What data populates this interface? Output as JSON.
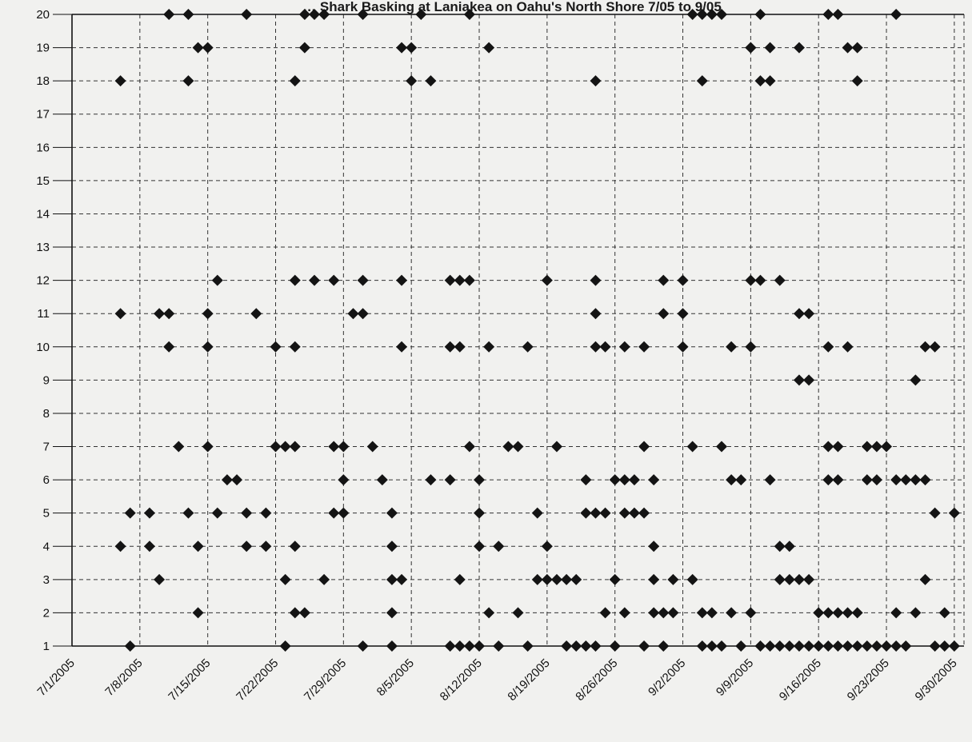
{
  "chart_data": {
    "type": "scatter",
    "title": "… Shark Basking at Laniakea on Oahu's North Shore 7/05 to 9/05",
    "xlabel": "",
    "ylabel": "",
    "x_ticks": [
      "7/1/2005",
      "7/8/2005",
      "7/15/2005",
      "7/22/2005",
      "7/29/2005",
      "8/5/2005",
      "8/12/2005",
      "8/19/2005",
      "8/26/2005",
      "9/2/2005",
      "9/9/2005",
      "9/16/2005",
      "9/23/2005",
      "9/30/2005"
    ],
    "xlim": [
      "2005-07-01",
      "2005-10-01"
    ],
    "ylim": [
      1,
      20
    ],
    "y_ticks": [
      1,
      2,
      3,
      4,
      5,
      6,
      7,
      8,
      9,
      10,
      11,
      12,
      13,
      14,
      15,
      16,
      17,
      18,
      19,
      20
    ],
    "grid": true,
    "marker": "diamond",
    "marker_color": "#141414",
    "points": [
      {
        "x": "2005-07-06",
        "y": 4
      },
      {
        "x": "2005-07-06",
        "y": 11
      },
      {
        "x": "2005-07-06",
        "y": 18
      },
      {
        "x": "2005-07-07",
        "y": 1
      },
      {
        "x": "2005-07-07",
        "y": 5
      },
      {
        "x": "2005-07-09",
        "y": 5
      },
      {
        "x": "2005-07-09",
        "y": 4
      },
      {
        "x": "2005-07-10",
        "y": 3
      },
      {
        "x": "2005-07-10",
        "y": 11
      },
      {
        "x": "2005-07-11",
        "y": 11
      },
      {
        "x": "2005-07-11",
        "y": 10
      },
      {
        "x": "2005-07-11",
        "y": 20
      },
      {
        "x": "2005-07-12",
        "y": 7
      },
      {
        "x": "2005-07-13",
        "y": 5
      },
      {
        "x": "2005-07-13",
        "y": 18
      },
      {
        "x": "2005-07-13",
        "y": 20
      },
      {
        "x": "2005-07-14",
        "y": 19
      },
      {
        "x": "2005-07-14",
        "y": 2
      },
      {
        "x": "2005-07-14",
        "y": 4
      },
      {
        "x": "2005-07-15",
        "y": 7
      },
      {
        "x": "2005-07-15",
        "y": 19
      },
      {
        "x": "2005-07-15",
        "y": 10
      },
      {
        "x": "2005-07-15",
        "y": 11
      },
      {
        "x": "2005-07-16",
        "y": 12
      },
      {
        "x": "2005-07-16",
        "y": 5
      },
      {
        "x": "2005-07-17",
        "y": 6
      },
      {
        "x": "2005-07-18",
        "y": 6
      },
      {
        "x": "2005-07-19",
        "y": 20
      },
      {
        "x": "2005-07-19",
        "y": 5
      },
      {
        "x": "2005-07-19",
        "y": 4
      },
      {
        "x": "2005-07-20",
        "y": 11
      },
      {
        "x": "2005-07-21",
        "y": 4
      },
      {
        "x": "2005-07-21",
        "y": 5
      },
      {
        "x": "2005-07-22",
        "y": 7
      },
      {
        "x": "2005-07-22",
        "y": 10
      },
      {
        "x": "2005-07-23",
        "y": 7
      },
      {
        "x": "2005-07-23",
        "y": 1
      },
      {
        "x": "2005-07-23",
        "y": 3
      },
      {
        "x": "2005-07-24",
        "y": 7
      },
      {
        "x": "2005-07-24",
        "y": 12
      },
      {
        "x": "2005-07-24",
        "y": 18
      },
      {
        "x": "2005-07-24",
        "y": 10
      },
      {
        "x": "2005-07-24",
        "y": 2
      },
      {
        "x": "2005-07-24",
        "y": 4
      },
      {
        "x": "2005-07-25",
        "y": 20
      },
      {
        "x": "2005-07-25",
        "y": 19
      },
      {
        "x": "2005-07-25",
        "y": 2
      },
      {
        "x": "2005-07-26",
        "y": 20
      },
      {
        "x": "2005-07-26",
        "y": 12
      },
      {
        "x": "2005-07-27",
        "y": 20
      },
      {
        "x": "2005-07-27",
        "y": 3
      },
      {
        "x": "2005-07-28",
        "y": 7
      },
      {
        "x": "2005-07-28",
        "y": 12
      },
      {
        "x": "2005-07-28",
        "y": 5
      },
      {
        "x": "2005-07-29",
        "y": 7
      },
      {
        "x": "2005-07-29",
        "y": 6
      },
      {
        "x": "2005-07-29",
        "y": 5
      },
      {
        "x": "2005-07-30",
        "y": 11
      },
      {
        "x": "2005-07-31",
        "y": 11
      },
      {
        "x": "2005-07-31",
        "y": 20
      },
      {
        "x": "2005-07-31",
        "y": 12
      },
      {
        "x": "2005-07-31",
        "y": 1
      },
      {
        "x": "2005-08-01",
        "y": 7
      },
      {
        "x": "2005-08-02",
        "y": 6
      },
      {
        "x": "2005-08-03",
        "y": 3
      },
      {
        "x": "2005-08-03",
        "y": 1
      },
      {
        "x": "2005-08-03",
        "y": 4
      },
      {
        "x": "2005-08-03",
        "y": 2
      },
      {
        "x": "2005-08-03",
        "y": 5
      },
      {
        "x": "2005-08-04",
        "y": 19
      },
      {
        "x": "2005-08-04",
        "y": 12
      },
      {
        "x": "2005-08-04",
        "y": 10
      },
      {
        "x": "2005-08-04",
        "y": 3
      },
      {
        "x": "2005-08-05",
        "y": 19
      },
      {
        "x": "2005-08-05",
        "y": 18
      },
      {
        "x": "2005-08-06",
        "y": 20
      },
      {
        "x": "2005-08-07",
        "y": 18
      },
      {
        "x": "2005-08-07",
        "y": 6
      },
      {
        "x": "2005-08-09",
        "y": 1
      },
      {
        "x": "2005-08-09",
        "y": 12
      },
      {
        "x": "2005-08-09",
        "y": 6
      },
      {
        "x": "2005-08-09",
        "y": 10
      },
      {
        "x": "2005-08-10",
        "y": 12
      },
      {
        "x": "2005-08-10",
        "y": 10
      },
      {
        "x": "2005-08-10",
        "y": 3
      },
      {
        "x": "2005-08-10",
        "y": 1
      },
      {
        "x": "2005-08-11",
        "y": 20
      },
      {
        "x": "2005-08-11",
        "y": 12
      },
      {
        "x": "2005-08-11",
        "y": 7
      },
      {
        "x": "2005-08-11",
        "y": 1
      },
      {
        "x": "2005-08-12",
        "y": 6
      },
      {
        "x": "2005-08-12",
        "y": 5
      },
      {
        "x": "2005-08-12",
        "y": 4
      },
      {
        "x": "2005-08-12",
        "y": 1
      },
      {
        "x": "2005-08-13",
        "y": 19
      },
      {
        "x": "2005-08-13",
        "y": 10
      },
      {
        "x": "2005-08-13",
        "y": 2
      },
      {
        "x": "2005-08-14",
        "y": 4
      },
      {
        "x": "2005-08-14",
        "y": 1
      },
      {
        "x": "2005-08-15",
        "y": 7
      },
      {
        "x": "2005-08-16",
        "y": 7
      },
      {
        "x": "2005-08-16",
        "y": 2
      },
      {
        "x": "2005-08-17",
        "y": 10
      },
      {
        "x": "2005-08-17",
        "y": 1
      },
      {
        "x": "2005-08-18",
        "y": 5
      },
      {
        "x": "2005-08-18",
        "y": 3
      },
      {
        "x": "2005-08-19",
        "y": 12
      },
      {
        "x": "2005-08-19",
        "y": 4
      },
      {
        "x": "2005-08-19",
        "y": 3
      },
      {
        "x": "2005-08-20",
        "y": 7
      },
      {
        "x": "2005-08-20",
        "y": 3
      },
      {
        "x": "2005-08-21",
        "y": 3
      },
      {
        "x": "2005-08-21",
        "y": 1
      },
      {
        "x": "2005-08-22",
        "y": 3
      },
      {
        "x": "2005-08-22",
        "y": 1
      },
      {
        "x": "2005-08-23",
        "y": 5
      },
      {
        "x": "2005-08-23",
        "y": 1
      },
      {
        "x": "2005-08-23",
        "y": 6
      },
      {
        "x": "2005-08-24",
        "y": 18
      },
      {
        "x": "2005-08-24",
        "y": 5
      },
      {
        "x": "2005-08-24",
        "y": 10
      },
      {
        "x": "2005-08-24",
        "y": 12
      },
      {
        "x": "2005-08-24",
        "y": 11
      },
      {
        "x": "2005-08-24",
        "y": 1
      },
      {
        "x": "2005-08-25",
        "y": 10
      },
      {
        "x": "2005-08-25",
        "y": 5
      },
      {
        "x": "2005-08-25",
        "y": 2
      },
      {
        "x": "2005-08-26",
        "y": 3
      },
      {
        "x": "2005-08-26",
        "y": 6
      },
      {
        "x": "2005-08-26",
        "y": 1
      },
      {
        "x": "2005-08-27",
        "y": 6
      },
      {
        "x": "2005-08-27",
        "y": 10
      },
      {
        "x": "2005-08-27",
        "y": 5
      },
      {
        "x": "2005-08-27",
        "y": 2
      },
      {
        "x": "2005-08-28",
        "y": 5
      },
      {
        "x": "2005-08-28",
        "y": 6
      },
      {
        "x": "2005-08-29",
        "y": 10
      },
      {
        "x": "2005-08-29",
        "y": 7
      },
      {
        "x": "2005-08-29",
        "y": 5
      },
      {
        "x": "2005-08-29",
        "y": 1
      },
      {
        "x": "2005-08-30",
        "y": 6
      },
      {
        "x": "2005-08-30",
        "y": 4
      },
      {
        "x": "2005-08-30",
        "y": 2
      },
      {
        "x": "2005-08-30",
        "y": 3
      },
      {
        "x": "2005-08-31",
        "y": 12
      },
      {
        "x": "2005-08-31",
        "y": 1
      },
      {
        "x": "2005-08-31",
        "y": 11
      },
      {
        "x": "2005-08-31",
        "y": 2
      },
      {
        "x": "2005-09-01",
        "y": 3
      },
      {
        "x": "2005-09-01",
        "y": 2
      },
      {
        "x": "2005-09-02",
        "y": 12
      },
      {
        "x": "2005-09-02",
        "y": 10
      },
      {
        "x": "2005-09-02",
        "y": 11
      },
      {
        "x": "2005-09-03",
        "y": 20
      },
      {
        "x": "2005-09-03",
        "y": 7
      },
      {
        "x": "2005-09-03",
        "y": 3
      },
      {
        "x": "2005-09-04",
        "y": 18
      },
      {
        "x": "2005-09-04",
        "y": 20
      },
      {
        "x": "2005-09-04",
        "y": 2
      },
      {
        "x": "2005-09-04",
        "y": 1
      },
      {
        "x": "2005-09-05",
        "y": 20
      },
      {
        "x": "2005-09-05",
        "y": 2
      },
      {
        "x": "2005-09-05",
        "y": 1
      },
      {
        "x": "2005-09-06",
        "y": 20
      },
      {
        "x": "2005-09-06",
        "y": 7
      },
      {
        "x": "2005-09-06",
        "y": 1
      },
      {
        "x": "2005-09-07",
        "y": 10
      },
      {
        "x": "2005-09-07",
        "y": 6
      },
      {
        "x": "2005-09-07",
        "y": 2
      },
      {
        "x": "2005-09-08",
        "y": 6
      },
      {
        "x": "2005-09-08",
        "y": 1
      },
      {
        "x": "2005-09-09",
        "y": 19
      },
      {
        "x": "2005-09-09",
        "y": 19
      },
      {
        "x": "2005-09-09",
        "y": 12
      },
      {
        "x": "2005-09-09",
        "y": 10
      },
      {
        "x": "2005-09-09",
        "y": 2
      },
      {
        "x": "2005-09-10",
        "y": 18
      },
      {
        "x": "2005-09-10",
        "y": 20
      },
      {
        "x": "2005-09-10",
        "y": 12
      },
      {
        "x": "2005-09-10",
        "y": 1
      },
      {
        "x": "2005-09-11",
        "y": 19
      },
      {
        "x": "2005-09-11",
        "y": 18
      },
      {
        "x": "2005-09-11",
        "y": 6
      },
      {
        "x": "2005-09-11",
        "y": 1
      },
      {
        "x": "2005-09-12",
        "y": 12
      },
      {
        "x": "2005-09-12",
        "y": 4
      },
      {
        "x": "2005-09-12",
        "y": 3
      },
      {
        "x": "2005-09-12",
        "y": 1
      },
      {
        "x": "2005-09-13",
        "y": 4
      },
      {
        "x": "2005-09-13",
        "y": 3
      },
      {
        "x": "2005-09-13",
        "y": 1
      },
      {
        "x": "2005-09-14",
        "y": 19
      },
      {
        "x": "2005-09-14",
        "y": 11
      },
      {
        "x": "2005-09-14",
        "y": 9
      },
      {
        "x": "2005-09-14",
        "y": 3
      },
      {
        "x": "2005-09-14",
        "y": 1
      },
      {
        "x": "2005-09-15",
        "y": 11
      },
      {
        "x": "2005-09-15",
        "y": 9
      },
      {
        "x": "2005-09-15",
        "y": 3
      },
      {
        "x": "2005-09-15",
        "y": 1
      },
      {
        "x": "2005-09-16",
        "y": 2
      },
      {
        "x": "2005-09-16",
        "y": 1
      },
      {
        "x": "2005-09-17",
        "y": 20
      },
      {
        "x": "2005-09-17",
        "y": 10
      },
      {
        "x": "2005-09-17",
        "y": 7
      },
      {
        "x": "2005-09-17",
        "y": 6
      },
      {
        "x": "2005-09-17",
        "y": 2
      },
      {
        "x": "2005-09-17",
        "y": 1
      },
      {
        "x": "2005-09-18",
        "y": 20
      },
      {
        "x": "2005-09-18",
        "y": 7
      },
      {
        "x": "2005-09-18",
        "y": 6
      },
      {
        "x": "2005-09-18",
        "y": 2
      },
      {
        "x": "2005-09-18",
        "y": 1
      },
      {
        "x": "2005-09-19",
        "y": 19
      },
      {
        "x": "2005-09-19",
        "y": 10
      },
      {
        "x": "2005-09-19",
        "y": 2
      },
      {
        "x": "2005-09-19",
        "y": 1
      },
      {
        "x": "2005-09-20",
        "y": 19
      },
      {
        "x": "2005-09-20",
        "y": 18
      },
      {
        "x": "2005-09-20",
        "y": 2
      },
      {
        "x": "2005-09-20",
        "y": 1
      },
      {
        "x": "2005-09-21",
        "y": 7
      },
      {
        "x": "2005-09-21",
        "y": 6
      },
      {
        "x": "2005-09-21",
        "y": 1
      },
      {
        "x": "2005-09-22",
        "y": 7
      },
      {
        "x": "2005-09-22",
        "y": 6
      },
      {
        "x": "2005-09-22",
        "y": 1
      },
      {
        "x": "2005-09-23",
        "y": 7
      },
      {
        "x": "2005-09-23",
        "y": 1
      },
      {
        "x": "2005-09-24",
        "y": 20
      },
      {
        "x": "2005-09-24",
        "y": 6
      },
      {
        "x": "2005-09-24",
        "y": 2
      },
      {
        "x": "2005-09-24",
        "y": 1
      },
      {
        "x": "2005-09-25",
        "y": 6
      },
      {
        "x": "2005-09-25",
        "y": 1
      },
      {
        "x": "2005-09-26",
        "y": 9
      },
      {
        "x": "2005-09-26",
        "y": 6
      },
      {
        "x": "2005-09-26",
        "y": 2
      },
      {
        "x": "2005-09-27",
        "y": 10
      },
      {
        "x": "2005-09-27",
        "y": 6
      },
      {
        "x": "2005-09-27",
        "y": 3
      },
      {
        "x": "2005-09-28",
        "y": 10
      },
      {
        "x": "2005-09-28",
        "y": 5
      },
      {
        "x": "2005-09-28",
        "y": 1
      },
      {
        "x": "2005-09-29",
        "y": 2
      },
      {
        "x": "2005-09-29",
        "y": 1
      },
      {
        "x": "2005-09-30",
        "y": 5
      },
      {
        "x": "2005-09-30",
        "y": 1
      }
    ]
  }
}
